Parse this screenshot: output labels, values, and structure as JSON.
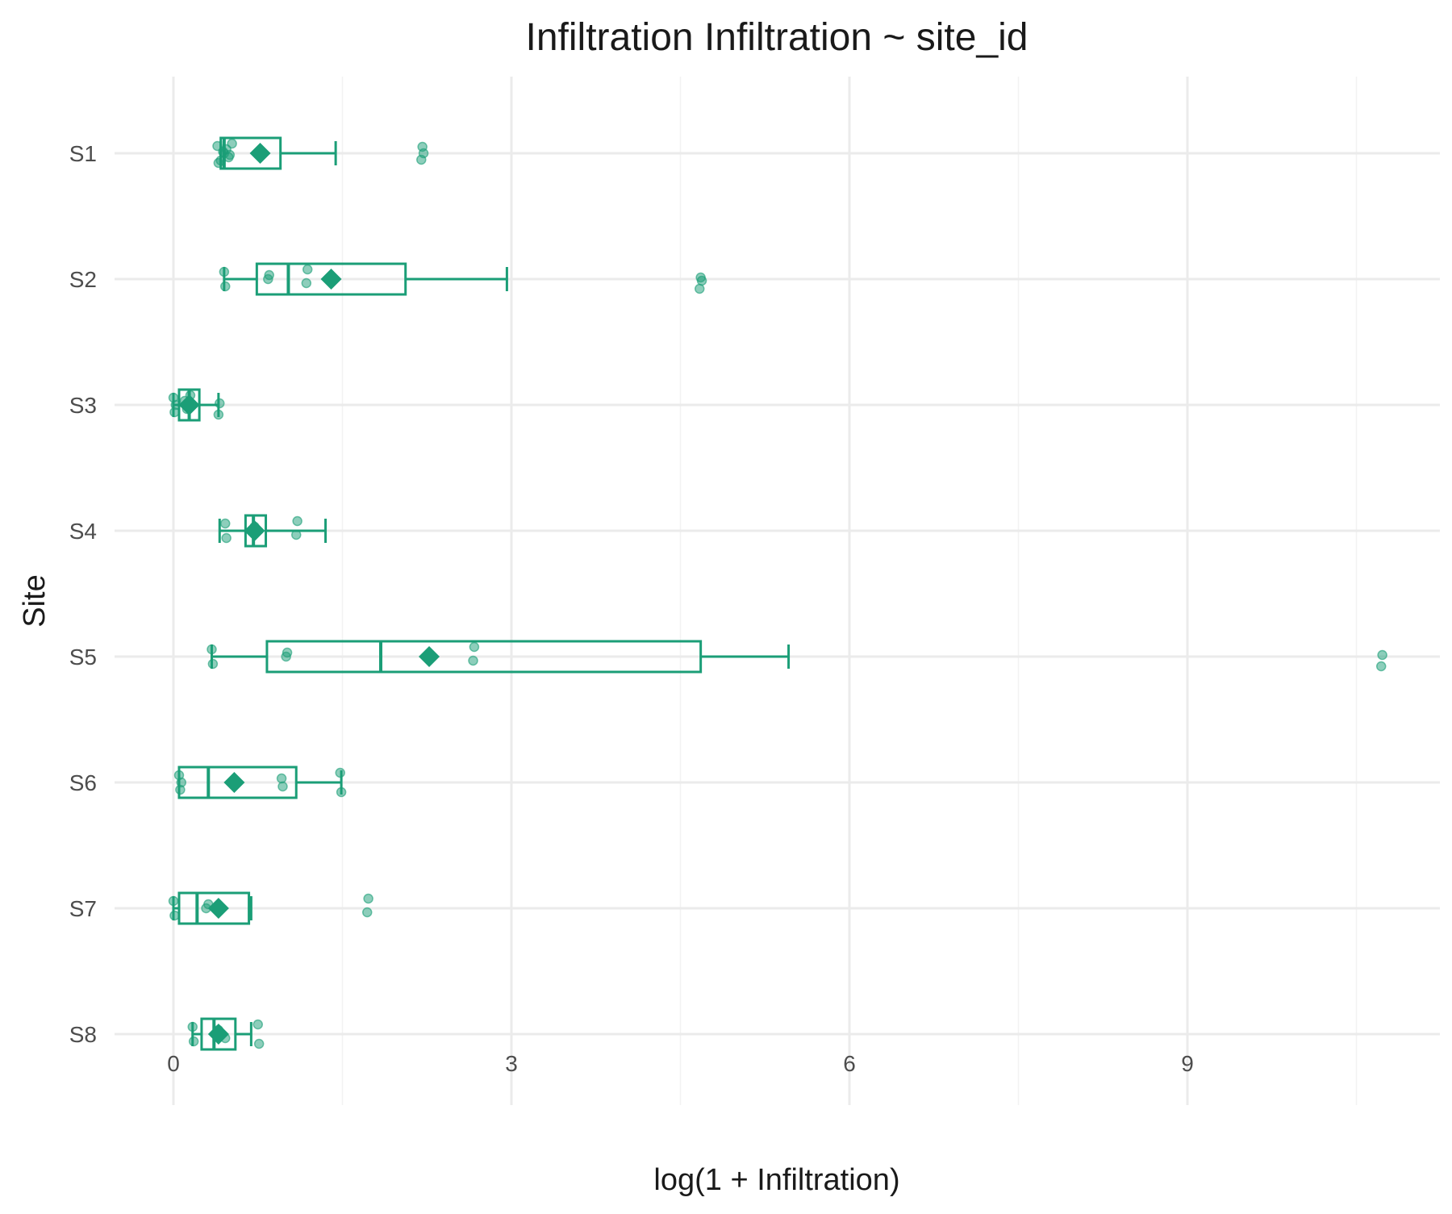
{
  "chart_data": {
    "type": "boxplot",
    "orientation": "horizontal",
    "title": "Infiltration Infiltration ~ site_id",
    "xlabel": "log(1 + Infiltration)",
    "ylabel": "Site",
    "xlim": [
      -0.5,
      11.2
    ],
    "x_ticks": [
      0,
      3,
      6,
      9
    ],
    "x_tick_labels": [
      "0",
      "3",
      "6",
      "9"
    ],
    "grid": true,
    "color": "#1b9e77",
    "categories": [
      "S1",
      "S2",
      "S3",
      "S4",
      "S5",
      "S6",
      "S7",
      "S8"
    ],
    "boxes": [
      {
        "site": "S1",
        "whisker_low": 0.42,
        "q1": 0.42,
        "median": 0.45,
        "q3": 0.95,
        "whisker_high": 1.44,
        "mean": 0.77,
        "points": [
          0.39,
          0.42,
          0.45,
          0.47,
          0.49,
          0.52,
          0.4,
          0.44,
          0.5,
          2.2,
          2.21,
          2.22
        ]
      },
      {
        "site": "S2",
        "whisker_low": 0.45,
        "q1": 0.74,
        "median": 1.02,
        "q3": 2.06,
        "whisker_high": 2.96,
        "mean": 1.4,
        "points": [
          0.45,
          0.46,
          0.84,
          0.85,
          1.18,
          1.19,
          4.67,
          4.68,
          4.69
        ]
      },
      {
        "site": "S3",
        "whisker_low": 0.0,
        "q1": 0.05,
        "median": 0.14,
        "q3": 0.23,
        "whisker_high": 0.4,
        "mean": 0.14,
        "points": [
          0.0,
          0.01,
          0.02,
          0.1,
          0.12,
          0.15,
          0.4,
          0.41
        ]
      },
      {
        "site": "S4",
        "whisker_low": 0.41,
        "q1": 0.64,
        "median": 0.71,
        "q3": 0.82,
        "whisker_high": 1.35,
        "mean": 0.72,
        "points": [
          0.46,
          0.47,
          0.69,
          0.72,
          1.09,
          1.1
        ]
      },
      {
        "site": "S5",
        "whisker_low": 0.34,
        "q1": 0.83,
        "median": 1.84,
        "q3": 4.68,
        "whisker_high": 5.46,
        "mean": 2.27,
        "points": [
          0.34,
          0.35,
          1.0,
          1.01,
          2.66,
          2.67,
          10.72,
          10.73
        ]
      },
      {
        "site": "S6",
        "whisker_low": 0.05,
        "q1": 0.05,
        "median": 0.31,
        "q3": 1.09,
        "whisker_high": 1.49,
        "mean": 0.54,
        "points": [
          0.05,
          0.06,
          0.07,
          0.96,
          0.97,
          1.48,
          1.49
        ]
      },
      {
        "site": "S7",
        "whisker_low": 0.0,
        "q1": 0.05,
        "median": 0.21,
        "q3": 0.67,
        "whisker_high": 0.69,
        "mean": 0.4,
        "points": [
          0.0,
          0.01,
          0.29,
          0.31,
          1.72,
          1.73
        ]
      },
      {
        "site": "S8",
        "whisker_low": 0.17,
        "q1": 0.25,
        "median": 0.36,
        "q3": 0.55,
        "whisker_high": 0.69,
        "mean": 0.4,
        "points": [
          0.17,
          0.18,
          0.38,
          0.4,
          0.46,
          0.75,
          0.76
        ]
      }
    ]
  }
}
